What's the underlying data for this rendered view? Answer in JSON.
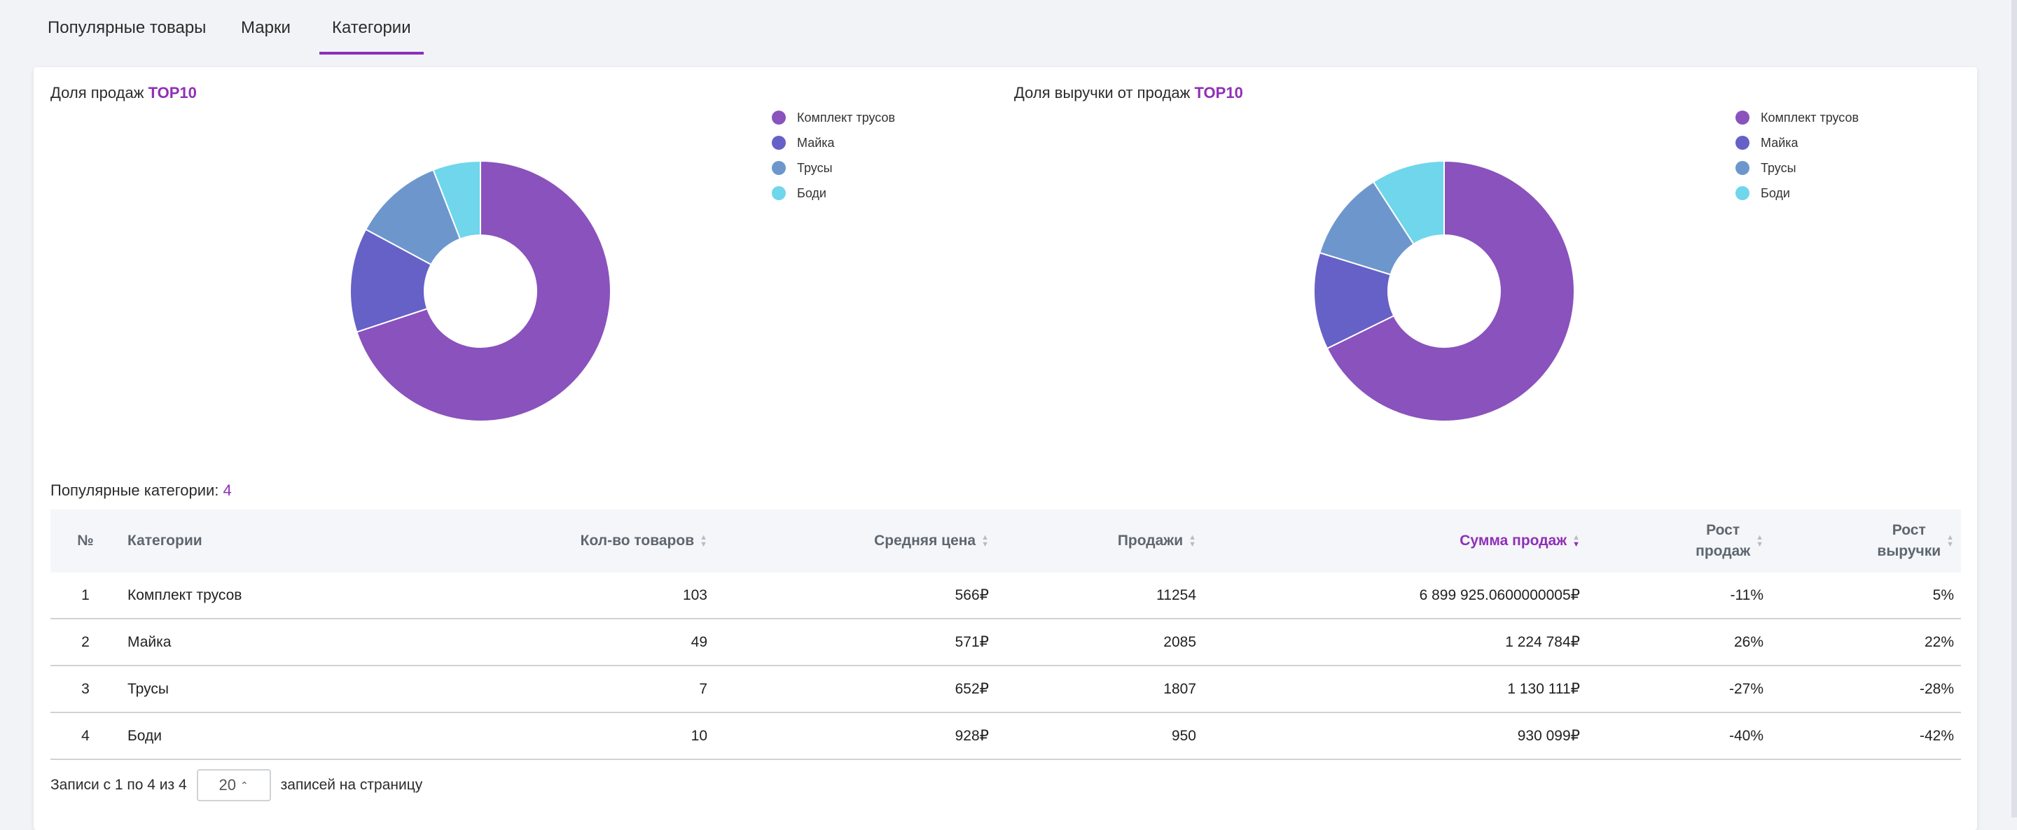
{
  "tabs": [
    {
      "label": "Популярные товары"
    },
    {
      "label": "Марки"
    },
    {
      "label": "Категории"
    }
  ],
  "charts": {
    "sales_share": {
      "title_prefix": "Доля продаж",
      "title_accent": "TOP10"
    },
    "revenue_share": {
      "title_prefix": "Доля выручки от продаж",
      "title_accent": "TOP10"
    }
  },
  "colors": {
    "accent": "#8f2fb8",
    "series": [
      "#8a52bc",
      "#6561c7",
      "#6d97cc",
      "#6fd6eb"
    ]
  },
  "chart_data": [
    {
      "type": "pie",
      "title": "Доля продаж TOP10",
      "categories": [
        "Комплект трусов",
        "Майка",
        "Трусы",
        "Боди"
      ],
      "values": [
        11254,
        2085,
        1807,
        950
      ],
      "legend": "top-right"
    },
    {
      "type": "pie",
      "title": "Доля выручки от продаж TOP10",
      "categories": [
        "Комплект трусов",
        "Майка",
        "Трусы",
        "Боди"
      ],
      "values": [
        6899925.06,
        1224784,
        1130111,
        930099
      ],
      "legend": "top-right"
    }
  ],
  "table": {
    "title": "Популярные категории:",
    "count": "4",
    "headers": {
      "num": "№",
      "category": "Категории",
      "qty": "Кол-во товаров",
      "avg_price": "Средняя цена",
      "sales": "Продажи",
      "sum": "Сумма продаж",
      "sales_growth_1": "Рост",
      "sales_growth_2": "продаж",
      "rev_growth_1": "Рост",
      "rev_growth_2": "выручки"
    },
    "rows": [
      {
        "num": "1",
        "category": "Комплект трусов",
        "qty": "103",
        "avg_price": "566₽",
        "sales": "11254",
        "sum": "6 899 925.0600000005₽",
        "sales_growth": "-11%",
        "rev_growth": "5%"
      },
      {
        "num": "2",
        "category": "Майка",
        "qty": "49",
        "avg_price": "571₽",
        "sales": "2085",
        "sum": "1 224 784₽",
        "sales_growth": "26%",
        "rev_growth": "22%"
      },
      {
        "num": "3",
        "category": "Трусы",
        "qty": "7",
        "avg_price": "652₽",
        "sales": "1807",
        "sum": "1 130 111₽",
        "sales_growth": "-27%",
        "rev_growth": "-28%"
      },
      {
        "num": "4",
        "category": "Боди",
        "qty": "10",
        "avg_price": "928₽",
        "sales": "950",
        "sum": "930 099₽",
        "sales_growth": "-40%",
        "rev_growth": "-42%"
      }
    ]
  },
  "footer": {
    "records": "Записи с 1 по 4 из 4",
    "page_size": "20",
    "per_page": "записей на страницу"
  }
}
